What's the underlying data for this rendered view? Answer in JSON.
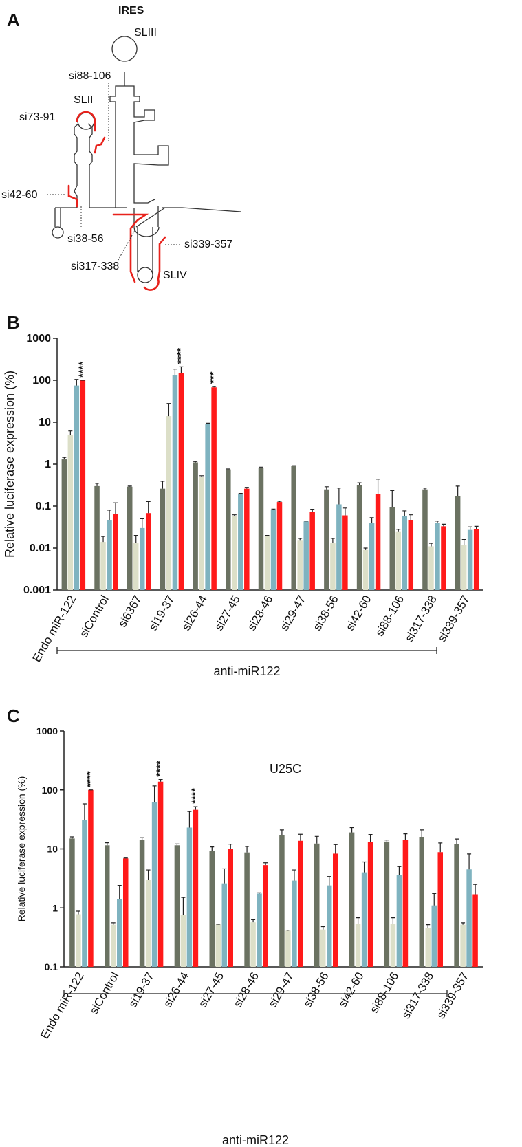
{
  "diagram": {
    "label": "A",
    "title": "IRES",
    "labels": [
      "SLIII",
      "si88-106",
      "SLII",
      "si73-91",
      "si42-60",
      "si38-56",
      "si317-338",
      "si339-357",
      "SLIV"
    ]
  },
  "chart_data": [
    {
      "type": "bar",
      "panel": "B",
      "ylabel": "Relative luciferase expression (%)",
      "ylog": true,
      "ylim": [
        0.001,
        1000
      ],
      "yticks": [
        0.001,
        0.01,
        0.1,
        1,
        10,
        100,
        1000
      ],
      "categories": [
        "Endo miR-122",
        "siControl",
        "si6367",
        "si19-37",
        "si26-44",
        "si27-45",
        "si28-46",
        "si29-47",
        "si38-56",
        "si42-60",
        "si88-106",
        "si317-338",
        "si339-357"
      ],
      "bracket_label": "anti-miR122",
      "series": [
        {
          "color": "#6b7262",
          "values": [
            1.3,
            0.3,
            0.29,
            0.26,
            1.1,
            0.75,
            0.82,
            0.9,
            0.25,
            0.32,
            0.095,
            0.25,
            0.17
          ],
          "errors": [
            0.15,
            0.05,
            0.01,
            0.13,
            0.05,
            0.02,
            0.03,
            0.02,
            0.04,
            0.04,
            0.14,
            0.02,
            0.13
          ]
        },
        {
          "color": "#dcdfc8",
          "values": [
            5,
            0.014,
            0.013,
            14,
            0.5,
            0.058,
            0.019,
            0.015,
            0.013,
            0.009,
            0.025,
            0.011,
            0.012
          ],
          "errors": [
            1.2,
            0.005,
            0.007,
            14,
            0.03,
            0.004,
            0.001,
            0.002,
            0.004,
            0.001,
            0.003,
            0.002,
            0.004
          ]
        },
        {
          "color": "#7fb3c0",
          "values": [
            75,
            0.047,
            0.03,
            135,
            9.2,
            0.19,
            0.082,
            0.043,
            0.11,
            0.04,
            0.057,
            0.039,
            0.027
          ],
          "errors": [
            30,
            0.033,
            0.02,
            50,
            0.3,
            0.01,
            0.003,
            0.001,
            0.16,
            0.013,
            0.02,
            0.005,
            0.005
          ]
        },
        {
          "color": "#ff1a1a",
          "values": [
            100,
            0.065,
            0.068,
            150,
            68,
            0.26,
            0.125,
            0.072,
            0.06,
            0.19,
            0.047,
            0.033,
            0.028
          ],
          "errors": [
            0,
            0.055,
            0.06,
            60,
            3,
            0.02,
            0.005,
            0.012,
            0.03,
            0.25,
            0.015,
            0.004,
            0.005
          ],
          "annotations": [
            "****",
            null,
            null,
            "****",
            "***",
            null,
            null,
            null,
            null,
            null,
            null,
            null,
            null
          ]
        }
      ]
    },
    {
      "type": "bar",
      "panel": "C",
      "title": "U25C",
      "ylabel": "Relative luciferase expression (%)",
      "ylog": true,
      "ylim": [
        0.1,
        1000
      ],
      "yticks": [
        0.1,
        1,
        10,
        100,
        1000
      ],
      "categories": [
        "Endo miR-122",
        "siControl",
        "si19-37",
        "si26-44",
        "si27-45",
        "si28-46",
        "si29-47",
        "si38-56",
        "si42-60",
        "si88-106",
        "si317-338",
        "si339-357"
      ],
      "bracket_label": "anti-miR122",
      "series": [
        {
          "color": "#6b7262",
          "values": [
            15,
            11.5,
            14,
            11.5,
            9.2,
            8.7,
            17,
            12.3,
            19,
            13.3,
            16,
            12.2
          ],
          "errors": [
            1,
            1.2,
            1.5,
            0.6,
            1.6,
            2.3,
            4,
            4,
            4,
            0.8,
            5,
            2.5
          ]
        },
        {
          "color": "#dcdfc8",
          "values": [
            0.78,
            0.52,
            3,
            0.75,
            0.52,
            0.57,
            0.41,
            0.43,
            0.53,
            0.53,
            0.46,
            0.52
          ],
          "errors": [
            0.1,
            0.04,
            1.4,
            0.75,
            0.01,
            0.06,
            0.01,
            0.05,
            0.15,
            0.15,
            0.06,
            0.04
          ]
        },
        {
          "color": "#7fb3c0",
          "values": [
            31,
            1.4,
            62,
            23,
            2.6,
            1.75,
            2.9,
            2.4,
            4,
            3.6,
            1.1,
            4.5
          ],
          "errors": [
            27,
            1,
            55,
            20,
            2,
            0.05,
            1.5,
            1,
            2,
            1.4,
            0.65,
            3.7
          ]
        },
        {
          "color": "#ff1a1a",
          "values": [
            100,
            6.9,
            138,
            46,
            10,
            5.3,
            13.7,
            8.3,
            13,
            14,
            8.8,
            1.7
          ],
          "errors": [
            0,
            0.1,
            12,
            6,
            2,
            0.5,
            4,
            3.5,
            4.5,
            4,
            3.8,
            0.8
          ],
          "annotations": [
            "****",
            null,
            "****",
            "****",
            null,
            null,
            null,
            null,
            null,
            null,
            null,
            null
          ]
        }
      ]
    }
  ]
}
